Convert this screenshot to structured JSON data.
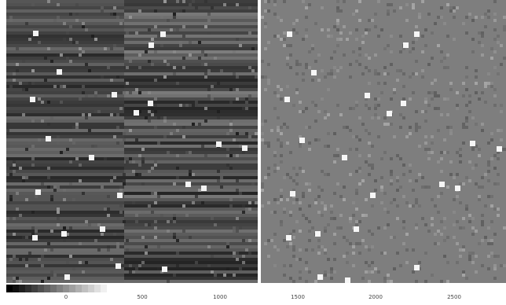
{
  "colorbar": {
    "stops": [
      "#000000",
      "#ffffff"
    ],
    "tick_labels": [
      "0",
      "500",
      "1000",
      "1500",
      "2000",
      "2500"
    ]
  },
  "panels": {
    "left": {
      "base_color": "#3a3a3a"
    },
    "right": {
      "base_color": "#7d7d7d"
    }
  }
}
